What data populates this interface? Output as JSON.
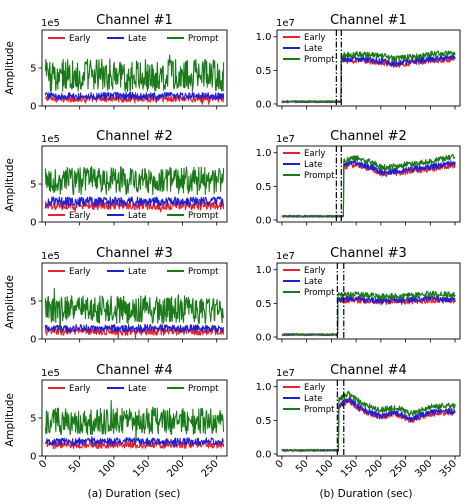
{
  "figure": {
    "ylabel": "Amplitude",
    "xlabel_a": "(a) Duration (sec)",
    "xlabel_b": "(b) Duration (sec)"
  },
  "colors": {
    "early": "#e8222d",
    "late": "#1f1fd6",
    "prompt": "#1a7a1a"
  },
  "chart_data": [
    {
      "type": "line",
      "title": "Channel #1",
      "col": "a",
      "row": 0,
      "offset": "1e5",
      "xlim": [
        -5,
        265
      ],
      "ylim": [
        0,
        10
      ],
      "yticks": [
        0,
        5
      ],
      "xticks": [
        0,
        50,
        100,
        150,
        200,
        250
      ],
      "show_xticklabels": false,
      "legend": "top",
      "markers": [],
      "series": [
        {
          "name": "Early",
          "key": "early",
          "lo": 0.5,
          "hi": 1.4
        },
        {
          "name": "Late",
          "key": "late",
          "lo": 0.8,
          "hi": 1.8
        },
        {
          "name": "Prompt",
          "key": "prompt",
          "lo": 1.9,
          "hi": 6.2
        }
      ]
    },
    {
      "type": "line",
      "title": "Channel #2",
      "col": "a",
      "row": 1,
      "offset": "1e5",
      "xlim": [
        -5,
        265
      ],
      "ylim": [
        0,
        10
      ],
      "yticks": [
        0,
        5
      ],
      "xticks": [
        0,
        50,
        100,
        150,
        200,
        250
      ],
      "show_xticklabels": false,
      "legend": "bottom",
      "markers": [],
      "series": [
        {
          "name": "Early",
          "key": "early",
          "lo": 1.6,
          "hi": 2.7
        },
        {
          "name": "Late",
          "key": "late",
          "lo": 2.1,
          "hi": 3.3
        },
        {
          "name": "Prompt",
          "key": "prompt",
          "lo": 3.6,
          "hi": 7.3
        }
      ]
    },
    {
      "type": "line",
      "title": "Channel #3",
      "col": "a",
      "row": 2,
      "offset": "1e5",
      "xlim": [
        -5,
        265
      ],
      "ylim": [
        0,
        10
      ],
      "yticks": [
        0,
        5
      ],
      "xticks": [
        0,
        50,
        100,
        150,
        200,
        250
      ],
      "show_xticklabels": false,
      "legend": "top",
      "markers": [],
      "series": [
        {
          "name": "Early",
          "key": "early",
          "lo": 0.5,
          "hi": 1.5
        },
        {
          "name": "Late",
          "key": "late",
          "lo": 0.9,
          "hi": 1.9
        },
        {
          "name": "Prompt",
          "key": "prompt",
          "lo": 2.0,
          "hi": 5.7
        }
      ]
    },
    {
      "type": "line",
      "title": "Channel #4",
      "col": "a",
      "row": 3,
      "offset": "1e5",
      "xlim": [
        -5,
        265
      ],
      "ylim": [
        0,
        10
      ],
      "yticks": [
        0,
        5
      ],
      "xticks": [
        0,
        50,
        100,
        150,
        200,
        250
      ],
      "show_xticklabels": true,
      "legend": "top",
      "markers": [],
      "series": [
        {
          "name": "Early",
          "key": "early",
          "lo": 1.0,
          "hi": 1.9
        },
        {
          "name": "Late",
          "key": "late",
          "lo": 1.4,
          "hi": 2.4
        },
        {
          "name": "Prompt",
          "key": "prompt",
          "lo": 2.8,
          "hi": 6.3
        }
      ]
    },
    {
      "type": "line",
      "title": "Channel #1",
      "col": "b",
      "row": 0,
      "offset": "1e7",
      "xlim": [
        -10,
        360
      ],
      "ylim": [
        -0.03,
        1.1
      ],
      "yticks": [
        0.0,
        0.5,
        1.0
      ],
      "xticks": [
        0,
        50,
        100,
        150,
        200,
        250,
        300,
        350
      ],
      "show_xticklabels": false,
      "legend": "top",
      "markers": [
        110,
        120
      ],
      "pre_level": 0.03,
      "jump_x": 120,
      "series": [
        {
          "name": "Early",
          "key": "early",
          "shape": [
            [
              120,
              0.64
            ],
            [
              150,
              0.65
            ],
            [
              200,
              0.62
            ],
            [
              230,
              0.58
            ],
            [
              300,
              0.65
            ],
            [
              350,
              0.67
            ]
          ]
        },
        {
          "name": "Late",
          "key": "late",
          "shape": [
            [
              120,
              0.66
            ],
            [
              150,
              0.67
            ],
            [
              200,
              0.64
            ],
            [
              230,
              0.6
            ],
            [
              300,
              0.67
            ],
            [
              350,
              0.69
            ]
          ]
        },
        {
          "name": "Prompt",
          "key": "prompt",
          "shape": [
            [
              120,
              0.72
            ],
            [
              150,
              0.74
            ],
            [
              200,
              0.72
            ],
            [
              230,
              0.67
            ],
            [
              300,
              0.74
            ],
            [
              350,
              0.76
            ]
          ]
        }
      ]
    },
    {
      "type": "line",
      "title": "Channel #2",
      "col": "b",
      "row": 1,
      "offset": "1e7",
      "xlim": [
        -10,
        360
      ],
      "ylim": [
        -0.03,
        1.1
      ],
      "yticks": [
        0.0,
        0.5,
        1.0
      ],
      "xticks": [
        0,
        50,
        100,
        150,
        200,
        250,
        300,
        350
      ],
      "show_xticklabels": false,
      "legend": "top",
      "markers": [
        110,
        120
      ],
      "pre_level": 0.05,
      "jump_x": 125,
      "series": [
        {
          "name": "Early",
          "key": "early",
          "shape": [
            [
              125,
              0.8
            ],
            [
              150,
              0.82
            ],
            [
              185,
              0.75
            ],
            [
              200,
              0.68
            ],
            [
              230,
              0.7
            ],
            [
              300,
              0.76
            ],
            [
              350,
              0.82
            ]
          ]
        },
        {
          "name": "Late",
          "key": "late",
          "shape": [
            [
              125,
              0.83
            ],
            [
              150,
              0.85
            ],
            [
              185,
              0.78
            ],
            [
              200,
              0.71
            ],
            [
              230,
              0.73
            ],
            [
              300,
              0.79
            ],
            [
              350,
              0.85
            ]
          ]
        },
        {
          "name": "Prompt",
          "key": "prompt",
          "shape": [
            [
              125,
              0.88
            ],
            [
              150,
              0.92
            ],
            [
              185,
              0.85
            ],
            [
              200,
              0.78
            ],
            [
              230,
              0.8
            ],
            [
              300,
              0.87
            ],
            [
              350,
              0.94
            ]
          ]
        }
      ]
    },
    {
      "type": "line",
      "title": "Channel #3",
      "col": "b",
      "row": 2,
      "offset": "1e7",
      "xlim": [
        -10,
        360
      ],
      "ylim": [
        -0.03,
        1.1
      ],
      "yticks": [
        0.0,
        0.5,
        1.0
      ],
      "xticks": [
        0,
        50,
        100,
        150,
        200,
        250,
        300,
        350
      ],
      "show_xticklabels": false,
      "legend": "top",
      "markers": [
        112,
        125
      ],
      "pre_level": 0.03,
      "jump_x": 113,
      "series": [
        {
          "name": "Early",
          "key": "early",
          "shape": [
            [
              113,
              0.55
            ],
            [
              150,
              0.55
            ],
            [
              200,
              0.52
            ],
            [
              250,
              0.53
            ],
            [
              300,
              0.55
            ],
            [
              350,
              0.54
            ]
          ]
        },
        {
          "name": "Late",
          "key": "late",
          "shape": [
            [
              113,
              0.57
            ],
            [
              150,
              0.57
            ],
            [
              200,
              0.54
            ],
            [
              250,
              0.55
            ],
            [
              300,
              0.57
            ],
            [
              350,
              0.56
            ]
          ]
        },
        {
          "name": "Prompt",
          "key": "prompt",
          "shape": [
            [
              113,
              0.62
            ],
            [
              150,
              0.63
            ],
            [
              200,
              0.6
            ],
            [
              250,
              0.61
            ],
            [
              300,
              0.64
            ],
            [
              350,
              0.62
            ]
          ]
        }
      ]
    },
    {
      "type": "line",
      "title": "Channel #4",
      "col": "b",
      "row": 3,
      "offset": "1e7",
      "xlim": [
        -10,
        360
      ],
      "ylim": [
        -0.03,
        1.1
      ],
      "yticks": [
        0.0,
        0.5,
        1.0
      ],
      "xticks": [
        0,
        50,
        100,
        150,
        200,
        250,
        300,
        350
      ],
      "show_xticklabels": true,
      "legend": "top",
      "markers": [
        112,
        125
      ],
      "pre_level": 0.05,
      "jump_x": 115,
      "series": [
        {
          "name": "Early",
          "key": "early",
          "shape": [
            [
              115,
              0.7
            ],
            [
              135,
              0.8
            ],
            [
              160,
              0.65
            ],
            [
              200,
              0.55
            ],
            [
              230,
              0.6
            ],
            [
              260,
              0.5
            ],
            [
              300,
              0.6
            ],
            [
              350,
              0.62
            ]
          ]
        },
        {
          "name": "Late",
          "key": "late",
          "shape": [
            [
              115,
              0.72
            ],
            [
              135,
              0.82
            ],
            [
              160,
              0.67
            ],
            [
              200,
              0.57
            ],
            [
              230,
              0.62
            ],
            [
              260,
              0.52
            ],
            [
              300,
              0.62
            ],
            [
              350,
              0.64
            ]
          ]
        },
        {
          "name": "Prompt",
          "key": "prompt",
          "shape": [
            [
              115,
              0.8
            ],
            [
              135,
              0.9
            ],
            [
              160,
              0.75
            ],
            [
              200,
              0.65
            ],
            [
              230,
              0.7
            ],
            [
              260,
              0.6
            ],
            [
              300,
              0.7
            ],
            [
              350,
              0.72
            ]
          ]
        }
      ]
    }
  ]
}
